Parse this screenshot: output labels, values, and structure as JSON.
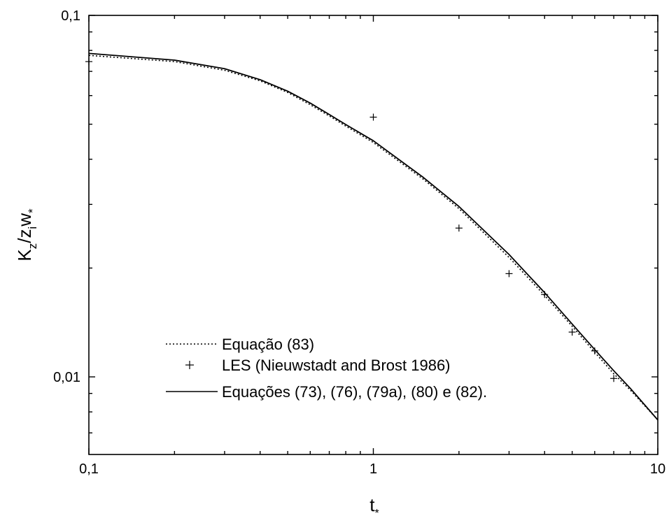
{
  "chart_data": {
    "type": "line",
    "x_scale": "log",
    "y_scale": "log",
    "xlim": [
      0.1,
      10
    ],
    "ylim": [
      0.0061,
      0.1
    ],
    "x_ticks": [
      0.1,
      1,
      10
    ],
    "x_tick_labels": [
      "0,1",
      "1",
      "10"
    ],
    "y_ticks": [
      0.01,
      0.1
    ],
    "y_tick_labels": [
      "0,01",
      "0,1"
    ],
    "xlabel": "t*",
    "xlabel_main": "t",
    "xlabel_sub": "*",
    "ylabel": "Kz/ziw*",
    "ylabel_parts": {
      "k": "K",
      "z_sub": "z",
      "slash_z": "/z",
      "i_sub": "i",
      "w": "w",
      "star": "*"
    },
    "grid": false,
    "legend_position": "bottom-left",
    "series": [
      {
        "name": "Equação (83)",
        "style": "dotted",
        "color": "#000000",
        "x": [
          0.1,
          0.2,
          0.3,
          0.4,
          0.5,
          0.6,
          0.7,
          0.8,
          1,
          1.5,
          2,
          3,
          4,
          5,
          6,
          7,
          8,
          10
        ],
        "y": [
          0.0775,
          0.0745,
          0.0705,
          0.0659,
          0.0612,
          0.0566,
          0.0527,
          0.0494,
          0.0445,
          0.0352,
          0.0292,
          0.0214,
          0.0168,
          0.0138,
          0.0117,
          0.0102,
          0.0092,
          0.0076
        ]
      },
      {
        "name": "LES (Nieuwstadt and Brost 1986)",
        "style": "markers",
        "marker": "plus",
        "color": "#000000",
        "x": [
          0.1,
          1,
          2,
          3,
          4,
          5,
          6,
          7
        ],
        "y": [
          0.0745,
          0.0523,
          0.0258,
          0.0193,
          0.0169,
          0.0133,
          0.0118,
          0.0099
        ]
      },
      {
        "name": "Equações (73), (76), (79a), (80) e (82).",
        "style": "solid",
        "color": "#000000",
        "x": [
          0.1,
          0.2,
          0.3,
          0.4,
          0.5,
          0.6,
          0.7,
          0.8,
          1,
          1.5,
          2,
          3,
          4,
          5,
          6,
          7,
          8,
          10
        ],
        "y": [
          0.0785,
          0.0752,
          0.0712,
          0.0664,
          0.0617,
          0.0572,
          0.0532,
          0.0499,
          0.045,
          0.0356,
          0.0296,
          0.0218,
          0.0171,
          0.014,
          0.0119,
          0.0104,
          0.0093,
          0.0076
        ]
      }
    ]
  }
}
